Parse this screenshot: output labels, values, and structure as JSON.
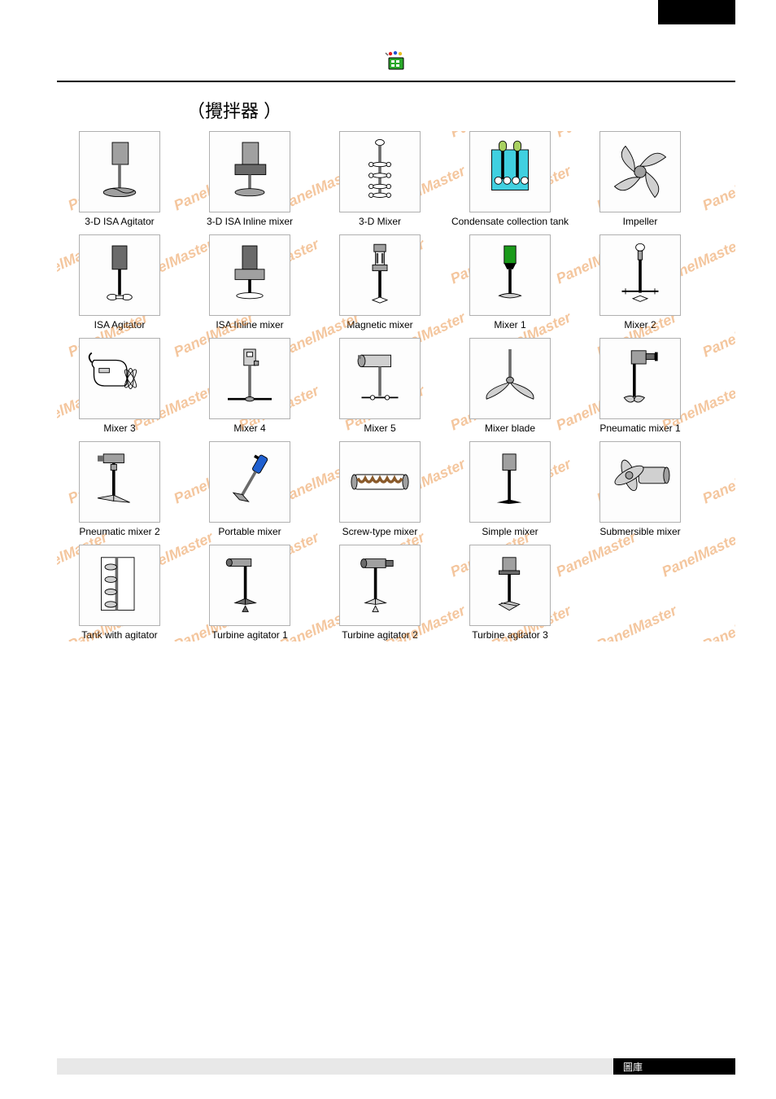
{
  "header": {
    "title": "（攪拌器  ）"
  },
  "footer": {
    "label": "圖庫"
  },
  "watermark": "PanelMaster",
  "colors": {
    "watermark": "#e57a1a",
    "border": "#b0b0b0",
    "gray_fill": "#a0a0a0",
    "dark_gray": "#6a6a6a",
    "light_gray": "#d0d0d0",
    "green": "#1a9a1a",
    "blue": "#2060d0",
    "cyan": "#40d0e0",
    "yellow_green": "#a8d060",
    "black": "#000000"
  },
  "items": [
    {
      "label": "3-D ISA Agitator",
      "icon": "agitator_3d_isa"
    },
    {
      "label": "3-D ISA Inline mixer",
      "icon": "agitator_3d_isa_inline"
    },
    {
      "label": "3-D Mixer",
      "icon": "mixer_3d"
    },
    {
      "label": "Condensate collection tank",
      "icon": "condensate_tank"
    },
    {
      "label": "Impeller",
      "icon": "impeller"
    },
    {
      "label": "ISA Agitator",
      "icon": "isa_agitator"
    },
    {
      "label": "ISA Inline mixer",
      "icon": "isa_inline"
    },
    {
      "label": "Magnetic mixer",
      "icon": "magnetic_mixer"
    },
    {
      "label": "Mixer 1",
      "icon": "mixer1"
    },
    {
      "label": "Mixer 2",
      "icon": "mixer2"
    },
    {
      "label": "Mixer 3",
      "icon": "mixer3"
    },
    {
      "label": "Mixer 4",
      "icon": "mixer4"
    },
    {
      "label": "Mixer 5",
      "icon": "mixer5"
    },
    {
      "label": "Mixer blade",
      "icon": "mixer_blade"
    },
    {
      "label": "Pneumatic mixer 1",
      "icon": "pneumatic1"
    },
    {
      "label": "Pneumatic mixer 2",
      "icon": "pneumatic2"
    },
    {
      "label": "Portable mixer",
      "icon": "portable"
    },
    {
      "label": "Screw-type mixer",
      "icon": "screw"
    },
    {
      "label": "Simple mixer",
      "icon": "simple"
    },
    {
      "label": "Submersible mixer",
      "icon": "submersible"
    },
    {
      "label": "Tank with agitator",
      "icon": "tank_agitator"
    },
    {
      "label": "Turbine agitator 1",
      "icon": "turbine1"
    },
    {
      "label": "Turbine agitator 2",
      "icon": "turbine2"
    },
    {
      "label": "Turbine agitator 3",
      "icon": "turbine3"
    }
  ]
}
